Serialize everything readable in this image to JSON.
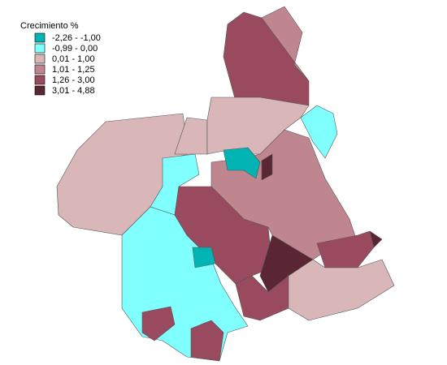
{
  "legend": {
    "title": "Crecimiento %",
    "items": [
      {
        "label": "-2,26 - -1,00",
        "color": "#00b4b4"
      },
      {
        "label": "-0,99 - 0,00",
        "color": "#80ffff"
      },
      {
        "label": "0,01 - 1,00",
        "color": "#d9b7b9"
      },
      {
        "label": "1,01 - 1,25",
        "color": "#c0868f"
      },
      {
        "label": "1,26 - 3,00",
        "color": "#9a4a5e"
      },
      {
        "label": "3,01 - 4,88",
        "color": "#5a2634"
      }
    ]
  }
}
